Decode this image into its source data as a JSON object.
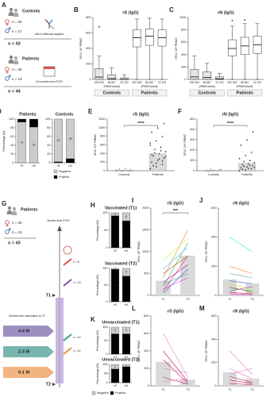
{
  "diagrams": {
    "A": {
      "panel": "A",
      "controls": {
        "title": "Controls",
        "female": "n = 26",
        "male": "n = 17",
        "note": "anti-N antibody negative",
        "total": "n = 43"
      },
      "patients": {
        "title": "Patients",
        "female": "n = 30",
        "male": "n = 14",
        "note": "3-6 months from PCR+",
        "total": "n = 44"
      }
    },
    "G": {
      "panel": "G",
      "title": "Patients",
      "female": "n = 30",
      "male": "n = 13",
      "total": "n = 43",
      "axis": "Months from PCR+",
      "doses": [
        "n = 8",
        "n = 13",
        "n = 10",
        "n = 12"
      ],
      "t1": "T1",
      "t2": "T2",
      "bracket": "Months from vaccination to T2",
      "groups": [
        "4-9 M",
        "2-3 M",
        "0-1 M"
      ]
    }
  },
  "chart_data": [
    {
      "type": "box",
      "panel": "B",
      "title": "rS (IgG)",
      "y_label": "SFU/ 10⁶ PBMC",
      "ylim": [
        0,
        800
      ],
      "yticks": [
        0,
        200,
        400,
        600,
        800
      ],
      "groups": [
        {
          "name": "Controls",
          "sublabel": "[PBMCs/well]",
          "color": "#e6e6e6",
          "categories": [
            "200 000",
            "66 667",
            "22 222"
          ],
          "boxes": [
            {
              "min": 0,
              "q1": 0,
              "median": 30,
              "q3": 140,
              "max": 300,
              "outliers": [
                680
              ]
            },
            {
              "min": 0,
              "q1": 0,
              "median": 10,
              "q3": 60,
              "max": 150,
              "outliers": []
            },
            {
              "min": 0,
              "q1": 0,
              "median": 0,
              "q3": 20,
              "max": 60,
              "outliers": []
            }
          ]
        },
        {
          "name": "Patients",
          "sublabel": "[PBMCs/well]",
          "color": "#ffffff",
          "categories": [
            "200 000",
            "66 667",
            "22 222"
          ],
          "boxes": [
            {
              "min": 0,
              "q1": 420,
              "median": 540,
              "q3": 640,
              "max": 780,
              "outliers": []
            },
            {
              "min": 0,
              "q1": 440,
              "median": 560,
              "q3": 650,
              "max": 790,
              "outliers": []
            },
            {
              "min": 0,
              "q1": 430,
              "median": 540,
              "q3": 640,
              "max": 780,
              "outliers": []
            }
          ]
        }
      ]
    },
    {
      "type": "box",
      "panel": "C",
      "title": "rN (IgG)",
      "y_label": "SFU/ 10⁶ PBMC",
      "ylim": [
        0,
        1000
      ],
      "yticks": [
        0,
        200,
        400,
        600,
        800,
        1000
      ],
      "groups": [
        {
          "name": "Controls",
          "sublabel": "[PBMCs/well]",
          "color": "#e6e6e6",
          "categories": [
            "200 000",
            "66 667",
            "22 222"
          ],
          "boxes": [
            {
              "min": 0,
              "q1": 0,
              "median": 40,
              "q3": 160,
              "max": 380,
              "outliers": []
            },
            {
              "min": 0,
              "q1": 0,
              "median": 30,
              "q3": 120,
              "max": 260,
              "outliers": []
            },
            {
              "min": 0,
              "q1": 0,
              "median": 10,
              "q3": 40,
              "max": 100,
              "outliers": []
            }
          ]
        },
        {
          "name": "Patients",
          "sublabel": "[PBMCs/well]",
          "color": "#ffffff",
          "categories": [
            "200 000",
            "66 667",
            "22 222"
          ],
          "boxes": [
            {
              "min": 0,
              "q1": 380,
              "median": 500,
              "q3": 640,
              "max": 860,
              "outliers": [
                950
              ]
            },
            {
              "min": 0,
              "q1": 400,
              "median": 540,
              "q3": 680,
              "max": 900,
              "outliers": [
                960
              ]
            },
            {
              "min": 0,
              "q1": 420,
              "median": 560,
              "q3": 700,
              "max": 900,
              "outliers": []
            }
          ]
        }
      ]
    },
    {
      "type": "stacked_bar",
      "panel": "D",
      "title": "Patients",
      "y_label": "Percentage [%]",
      "categories": [
        "rS",
        "rN"
      ],
      "ylim": [
        0,
        100
      ],
      "yticks": [
        0,
        20,
        40,
        60,
        80,
        100
      ],
      "series": [
        {
          "color": "#cccccc",
          "values": [
            93.2,
            81.8
          ],
          "counts": [
            41,
            36
          ]
        },
        {
          "color": "#000000",
          "values": [
            6.8,
            18.2
          ],
          "counts": [
            3,
            8
          ]
        }
      ]
    },
    {
      "type": "stacked_bar",
      "title": "Controls",
      "categories": [
        "rS",
        "rN"
      ],
      "ylim": [
        0,
        100
      ],
      "yticks": [
        0,
        20,
        40,
        60,
        80,
        100
      ],
      "legend": "bottom",
      "series": [
        {
          "name": "Positive",
          "color": "#000000",
          "values": [
            2.3,
            9.3
          ],
          "counts": [
            1,
            4
          ]
        },
        {
          "name": "Negative",
          "color": "#cccccc",
          "values": [
            97.7,
            90.7
          ],
          "counts": [
            42,
            39
          ]
        }
      ]
    },
    {
      "type": "scatter_bar",
      "panel": "E",
      "title": "rS (IgG)",
      "y_label": "SFU/ 10⁶ PBMC",
      "categories": [
        "Controls",
        "Patients"
      ],
      "values": [
        15,
        390
      ],
      "color": "#d9d9d9",
      "points": [
        [
          0,
          0,
          5,
          10,
          20,
          30,
          40,
          60,
          5,
          0,
          15,
          25
        ],
        [
          50,
          100,
          150,
          200,
          250,
          300,
          350,
          400,
          450,
          500,
          550,
          600,
          700,
          800,
          900,
          1000,
          1100,
          120,
          280,
          330,
          420,
          470,
          650,
          180,
          230,
          380
        ]
      ],
      "ylim": [
        0,
        1200
      ],
      "yticks": [
        0,
        200,
        400,
        600,
        800,
        1000,
        1200
      ],
      "significance": "****"
    },
    {
      "type": "scatter_bar",
      "panel": "F",
      "title": "rN (IgG)",
      "y_label": "SFU/ 10⁶ PBMC",
      "categories": [
        "Controls",
        "Patients"
      ],
      "values": [
        5,
        70
      ],
      "color": "#d9d9d9",
      "points": [
        [
          0,
          0,
          2,
          5,
          8,
          10,
          0,
          3,
          15,
          20
        ],
        [
          0,
          10,
          20,
          30,
          40,
          50,
          60,
          70,
          80,
          90,
          100,
          120,
          150,
          180,
          250,
          300,
          380,
          15,
          25,
          35,
          45,
          55
        ]
      ],
      "ylim": [
        0,
        500
      ],
      "yticks": [
        0,
        100,
        200,
        300,
        400,
        500
      ],
      "significance": "****"
    },
    {
      "type": "stacked_bar",
      "panel": "H",
      "title": "Vaccinated (T1)",
      "y_label": "Percentage [%]",
      "categories": [
        "rS",
        "rN"
      ],
      "ylim": [
        0,
        100
      ],
      "yticks": [
        0,
        50,
        100
      ],
      "series": [
        {
          "color": "#000000",
          "values": [
            91.4,
            77.1
          ],
          "counts": [
            32,
            27
          ]
        },
        {
          "color": "#cccccc",
          "values": [
            8.6,
            22.9
          ],
          "counts": [
            3,
            8
          ]
        }
      ]
    },
    {
      "type": "stacked_bar",
      "title": "Vaccinated (T2)",
      "y_label": "Percentage [%]",
      "categories": [
        "rS",
        "rN"
      ],
      "ylim": [
        0,
        100
      ],
      "yticks": [
        0,
        50,
        100
      ],
      "series": [
        {
          "color": "#000000",
          "values": [
            97.1,
            77.1
          ],
          "counts": [
            34,
            27
          ]
        },
        {
          "color": "#cccccc",
          "values": [
            2.9,
            22.9
          ],
          "counts": [
            1,
            8
          ]
        }
      ]
    },
    {
      "type": "stacked_bar",
      "panel": "K",
      "title": "Unvaccinated (T1)",
      "y_label": "Percentage [%]",
      "categories": [
        "rS",
        "rN"
      ],
      "ylim": [
        0,
        100
      ],
      "yticks": [
        0,
        50,
        100
      ],
      "series": [
        {
          "color": "#000000",
          "values": [
            75,
            75
          ],
          "counts": [
            6,
            6
          ]
        },
        {
          "color": "#cccccc",
          "values": [
            25,
            25
          ],
          "counts": [
            2,
            2
          ]
        }
      ]
    },
    {
      "type": "stacked_bar",
      "title": "Unvaccinated (T2)",
      "y_label": "Percentage [%]",
      "categories": [
        "rS",
        "rN"
      ],
      "ylim": [
        0,
        100
      ],
      "yticks": [
        0,
        50,
        100
      ],
      "legend": "bottom",
      "series": [
        {
          "name": "Positive",
          "color": "#000000",
          "values": [
            75,
            87.5
          ],
          "counts": [
            6,
            7
          ]
        },
        {
          "name": "Negative",
          "color": "#cccccc",
          "values": [
            25,
            12.5
          ],
          "counts": [
            2,
            1
          ]
        }
      ]
    },
    {
      "type": "paired",
      "panel": "I",
      "title": "rS (IgG)",
      "y_label": "SFU/ 10⁶ PBMC",
      "categories": [
        "T1",
        "T2"
      ],
      "values": [
        335,
        910
      ],
      "color": "#d9d9d9",
      "ylim": [
        0,
        2000
      ],
      "yticks": [
        0,
        500,
        1000,
        1500,
        2000
      ],
      "significance": "***",
      "series": [
        {
          "color": "#e6194b",
          "values": [
            100,
            900
          ]
        },
        {
          "color": "#3cb44b",
          "values": [
            200,
            1200
          ]
        },
        {
          "color": "#4363d8",
          "values": [
            50,
            600
          ]
        },
        {
          "color": "#f58231",
          "values": [
            400,
            1500
          ]
        },
        {
          "color": "#911eb4",
          "values": [
            300,
            700
          ]
        },
        {
          "color": "#42d4f4",
          "values": [
            600,
            1100
          ]
        },
        {
          "color": "#f032e6",
          "values": [
            150,
            400
          ]
        },
        {
          "color": "#bfef45",
          "values": [
            800,
            1300
          ]
        },
        {
          "color": "#469990",
          "values": [
            250,
            500
          ]
        },
        {
          "color": "#9a6324",
          "values": [
            500,
            900
          ]
        }
      ]
    },
    {
      "type": "paired",
      "panel": "J",
      "title": "rN (IgG)",
      "y_label": "SFU/ 10⁶ PBMC",
      "categories": [
        "T1",
        "T2"
      ],
      "values": [
        110,
        82
      ],
      "color": "#d9d9d9",
      "ylim": [
        0,
        600
      ],
      "yticks": [
        0,
        200,
        400,
        600
      ],
      "series": [
        {
          "color": "#e6194b",
          "values": [
            20,
            10
          ]
        },
        {
          "color": "#3cb44b",
          "values": [
            50,
            30
          ]
        },
        {
          "color": "#4363d8",
          "values": [
            100,
            80
          ]
        },
        {
          "color": "#f58231",
          "values": [
            200,
            150
          ]
        },
        {
          "color": "#911eb4",
          "values": [
            30,
            60
          ]
        },
        {
          "color": "#42d4f4",
          "values": [
            400,
            300
          ]
        },
        {
          "color": "#f032e6",
          "values": [
            10,
            5
          ]
        },
        {
          "color": "#bfef45",
          "values": [
            80,
            40
          ]
        },
        {
          "color": "#469990",
          "values": [
            150,
            120
          ]
        },
        {
          "color": "#9a6324",
          "values": [
            60,
            20
          ]
        }
      ]
    },
    {
      "type": "paired",
      "panel": "L",
      "title": "rS (IgG)",
      "y_label": "SFU/ 10⁶ PBMC",
      "categories": [
        "T1",
        "T2"
      ],
      "values": [
        275,
        72
      ],
      "color": "#d9d9d9",
      "ylim": [
        0,
        800
      ],
      "yticks": [
        0,
        200,
        400,
        600,
        800
      ],
      "series": [
        {
          "color": "#e377c2",
          "values": [
            600,
            100
          ]
        },
        {
          "color": "#c2185b",
          "values": [
            400,
            50
          ]
        },
        {
          "color": "#e377c2",
          "values": [
            200,
            150
          ]
        },
        {
          "color": "#c2185b",
          "values": [
            100,
            20
          ]
        },
        {
          "color": "#e377c2",
          "values": [
            50,
            80
          ]
        },
        {
          "color": "#c2185b",
          "values": [
            300,
            30
          ]
        }
      ]
    },
    {
      "type": "paired",
      "panel": "M",
      "title": "rN (IgG)",
      "y_label": "SFU/ 10⁶ PBMC",
      "categories": [
        "T1",
        "T2"
      ],
      "values": [
        117,
        62
      ],
      "color": "#d9d9d9",
      "ylim": [
        0,
        600
      ],
      "yticks": [
        0,
        200,
        400,
        600
      ],
      "series": [
        {
          "color": "#e377c2",
          "values": [
            300,
            100
          ]
        },
        {
          "color": "#c2185b",
          "values": [
            50,
            20
          ]
        },
        {
          "color": "#e377c2",
          "values": [
            100,
            150
          ]
        },
        {
          "color": "#c2185b",
          "values": [
            20,
            10
          ]
        },
        {
          "color": "#e377c2",
          "values": [
            150,
            60
          ]
        },
        {
          "color": "#c2185b",
          "values": [
            80,
            30
          ]
        }
      ]
    }
  ]
}
